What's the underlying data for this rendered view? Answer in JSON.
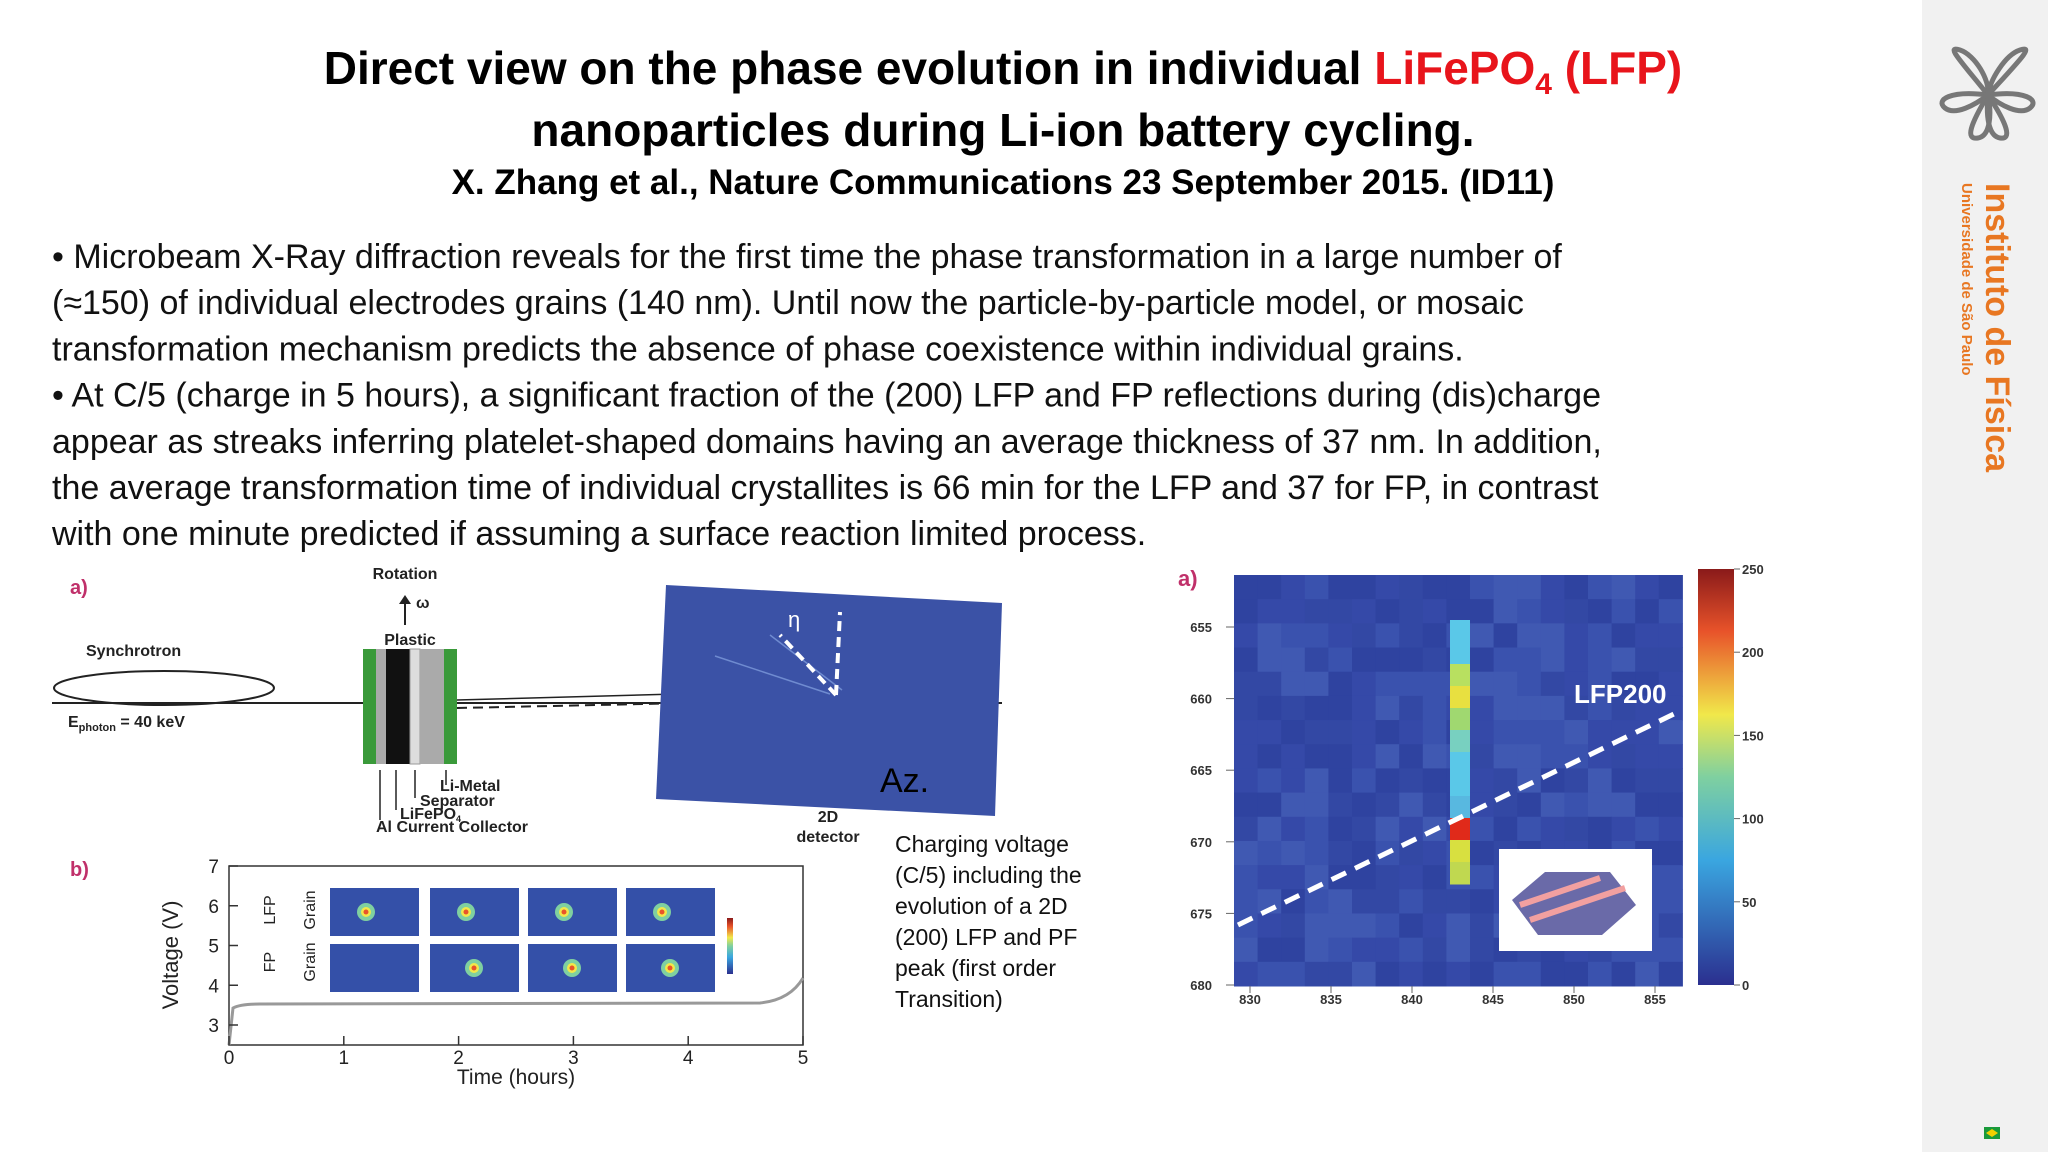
{
  "header": {
    "title_part1": "Direct view on the phase evolution in individual ",
    "title_formula": "LiFePO",
    "title_formula_sub": "4",
    "title_formula_tail": " (LFP)",
    "title_line2": "nanoparticles during Li-ion battery cycling.",
    "citation": "X. Zhang et al., Nature Communications 23 September 2015. (ID11)"
  },
  "body": {
    "lines": [
      "•   Microbeam X-Ray diffraction reveals for the first time the phase transformation in a large number of",
      "(≈150) of individual electrodes grains (140 nm). Until now the particle-by-particle model, or mosaic",
      "transformation mechanism predicts the absence of phase coexistence within individual grains.",
      "• At C/5 (charge in 5 hours), a significant fraction of the (200) LFP and FP  reflections during (dis)charge",
      "appear as streaks inferring platelet-shaped domains having  an average thickness of 37 nm. In addition,",
      "the average transformation time of individual crystallites is 66 min for the LFP and 37 for FP, in  contrast",
      "with one minute predicted if assuming a surface reaction limited process."
    ]
  },
  "setup_figure": {
    "panel": "a)",
    "rotation": "Rotation",
    "omega": "ω",
    "plastic": "Plastic",
    "synchrotron": "Synchrotron",
    "energy_symbol": "E",
    "energy_sub": "photon",
    "energy_value": " = 40 keV",
    "li_metal": "Li-Metal",
    "separator": "Separator",
    "lifepo": "LiFePO",
    "lifepo_sub": "4",
    "collector": "Al Current Collector",
    "detector_line1": "2D",
    "detector_line2": "detector",
    "eta": "η",
    "azimuth": "Az."
  },
  "voltage_plot": {
    "panel": "b)",
    "ylabel": "Voltage (V)",
    "xlabel": "Time (hours)",
    "yticks": [
      3,
      4,
      5,
      6,
      7
    ],
    "xticks": [
      0,
      1,
      2,
      3,
      4,
      5
    ],
    "row_labels": [
      "LFP",
      "Grain",
      "FP",
      "Grain"
    ]
  },
  "caption": {
    "lines": [
      "Charging voltage",
      "(C/5) including the",
      "evolution of a 2D",
      "(200) LFP and PF",
      "peak (first order",
      "Transition)"
    ]
  },
  "heatmap": {
    "panel": "a)",
    "yticks": [
      655,
      660,
      665,
      670,
      675,
      680
    ],
    "xticks": [
      830,
      835,
      840,
      845,
      850,
      855
    ],
    "colorbar_ticks": [
      0,
      50,
      100,
      150,
      200,
      250
    ],
    "label": "LFP200"
  },
  "sidebar": {
    "institute": "Instituto de Física",
    "university": "Universidade de São Paulo"
  }
}
